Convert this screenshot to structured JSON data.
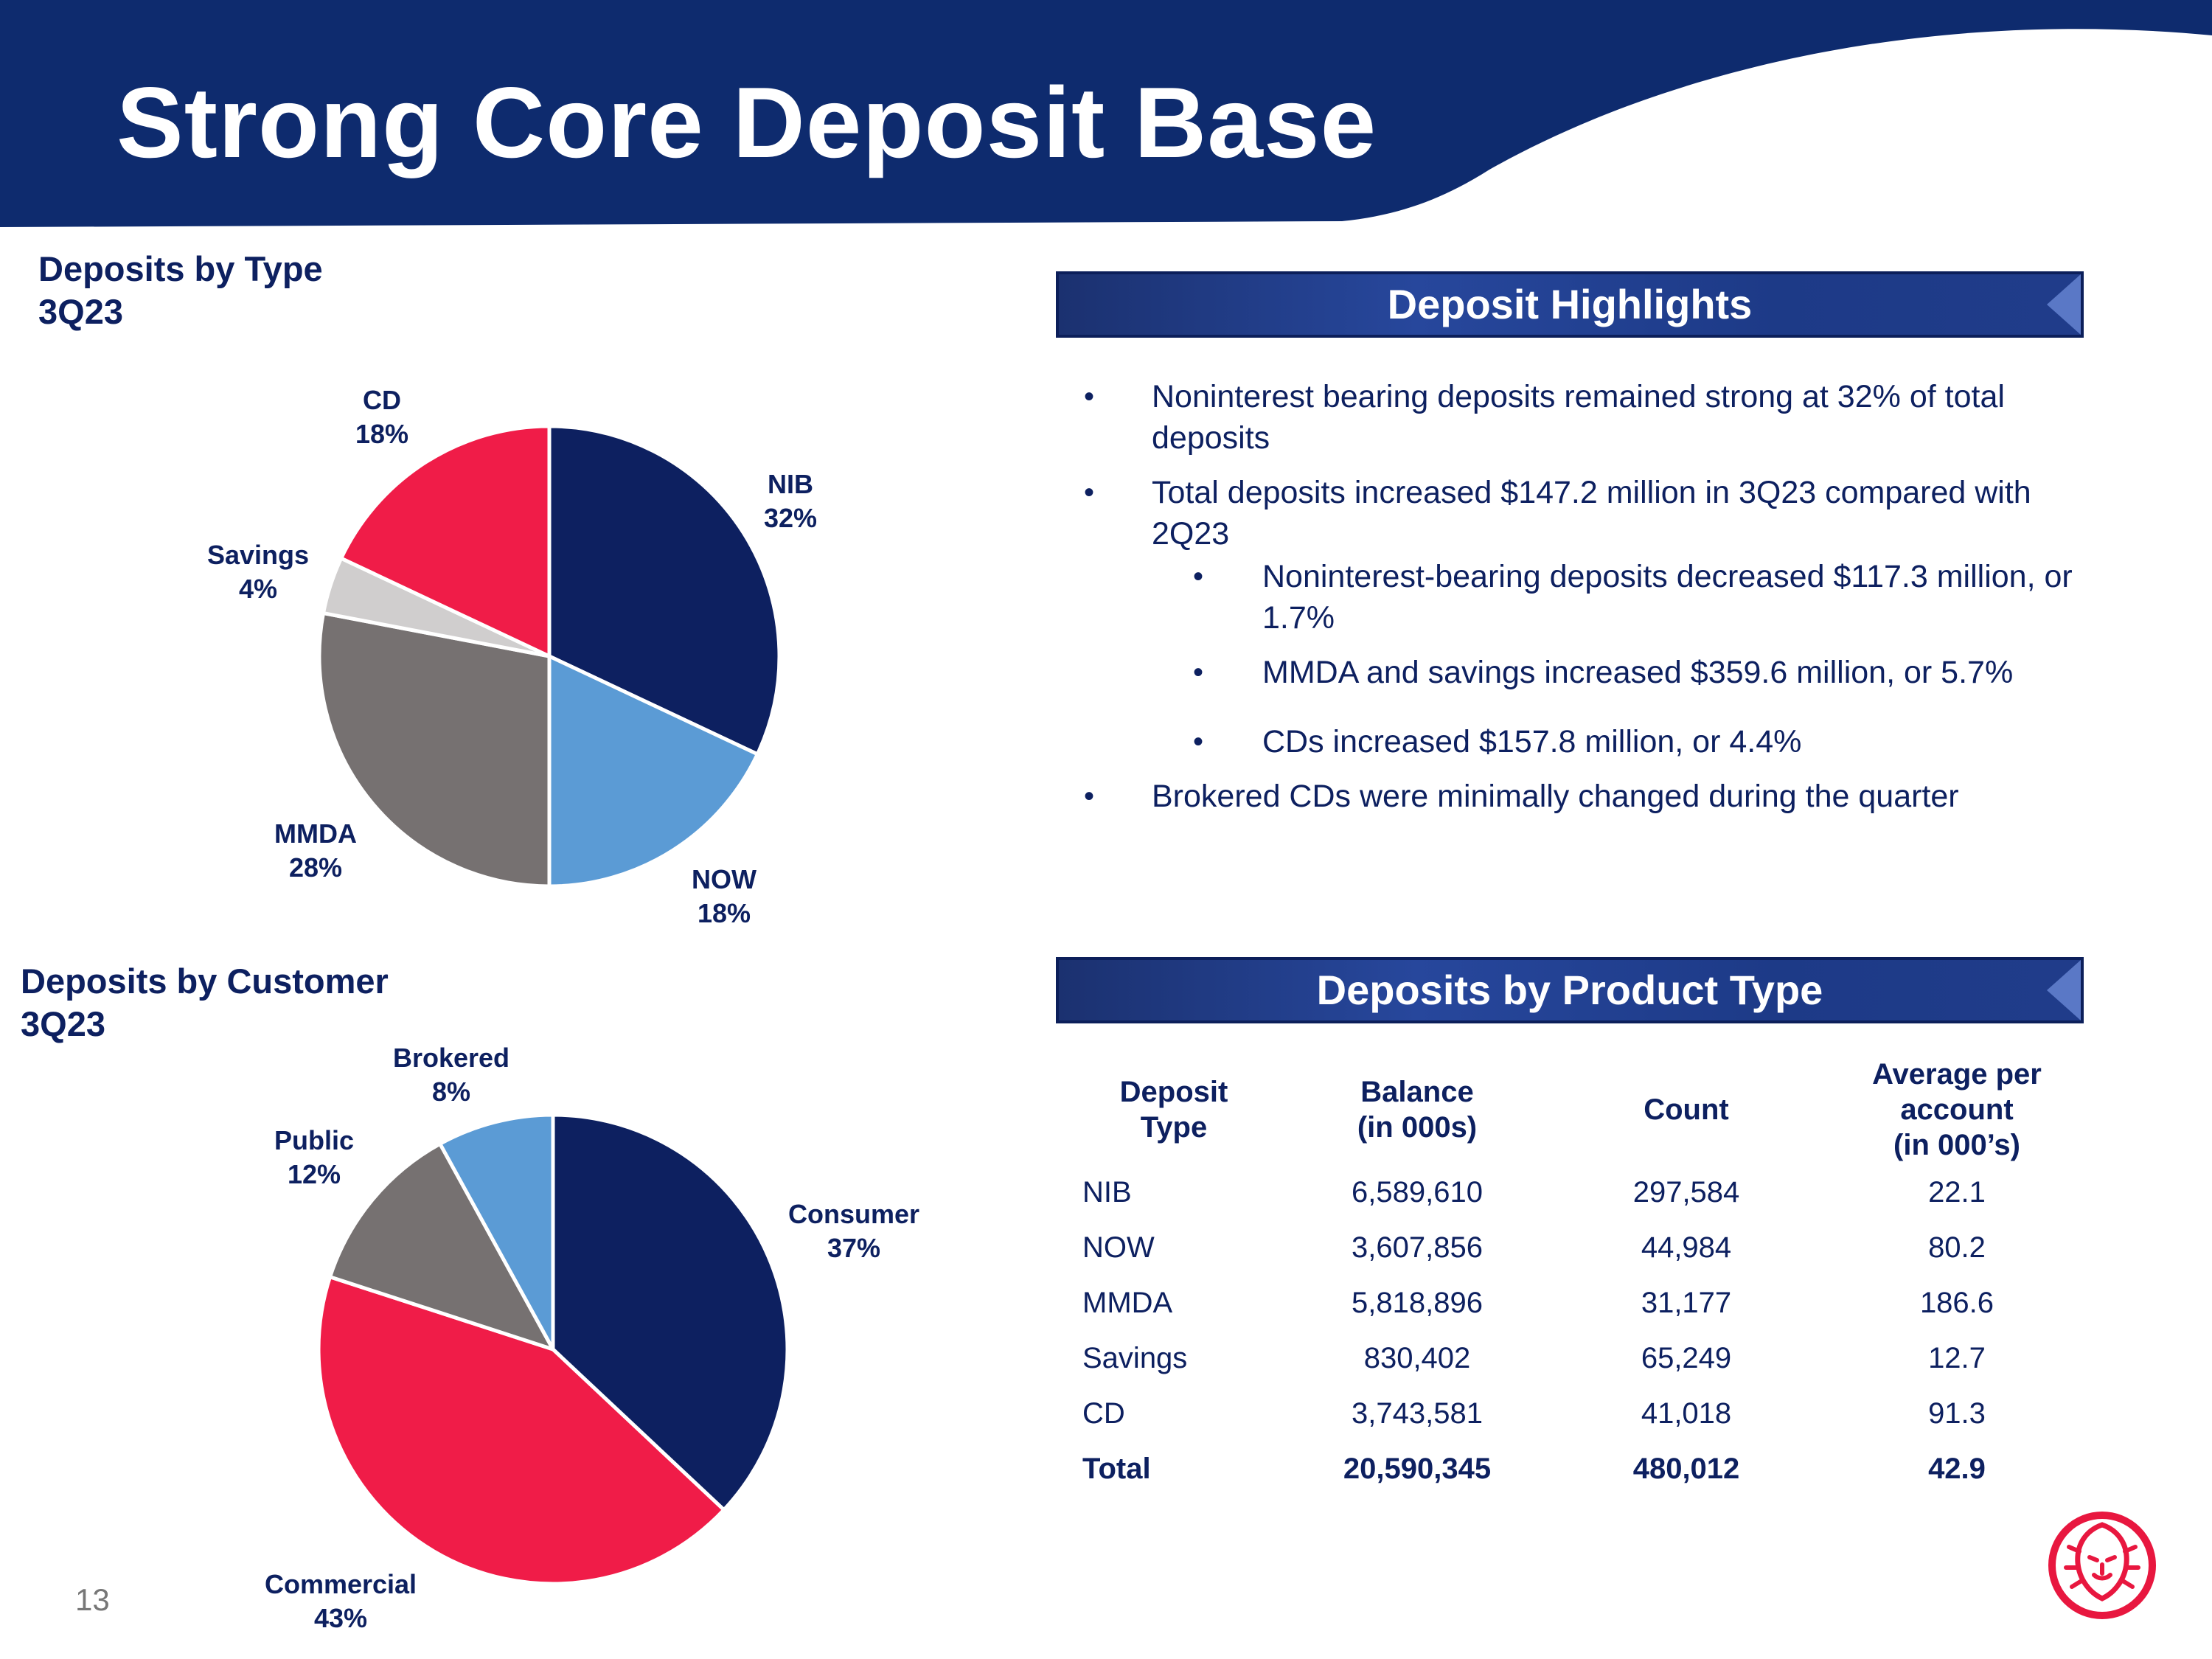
{
  "page": {
    "title": "Strong Core Deposit Base",
    "page_number": "13"
  },
  "colors": {
    "navy": "#0d2060",
    "header": "#0e2b6e",
    "red": "#f01c48",
    "light_blue": "#5b9bd5",
    "gray": "#767171",
    "light_gray": "#d0cece"
  },
  "chart_data": [
    {
      "type": "pie",
      "title": "Deposits by Type",
      "subtitle": "3Q23",
      "slices": [
        {
          "label": "NIB",
          "percent_label": "32%",
          "value": 32,
          "color": "#0d2060"
        },
        {
          "label": "NOW",
          "percent_label": "18%",
          "value": 18,
          "color": "#5b9bd5"
        },
        {
          "label": "MMDA",
          "percent_label": "28%",
          "value": 28,
          "color": "#767171"
        },
        {
          "label": "Savings",
          "percent_label": "4%",
          "value": 4,
          "color": "#d0cece"
        },
        {
          "label": "CD",
          "percent_label": "18%",
          "value": 18,
          "color": "#f01c48"
        }
      ]
    },
    {
      "type": "pie",
      "title": "Deposits by Customer",
      "subtitle": "3Q23",
      "slices": [
        {
          "label": "Consumer",
          "percent_label": "37%",
          "value": 37,
          "color": "#0d2060"
        },
        {
          "label": "Commercial",
          "percent_label": "43%",
          "value": 43,
          "color": "#f01c48"
        },
        {
          "label": "Public",
          "percent_label": "12%",
          "value": 12,
          "color": "#767171"
        },
        {
          "label": "Brokered",
          "percent_label": "8%",
          "value": 8,
          "color": "#5b9bd5"
        }
      ]
    }
  ],
  "highlights": {
    "heading": "Deposit Highlights",
    "bullets": [
      "Noninterest bearing deposits remained strong at 32% of total deposits",
      "Total deposits increased $147.2 million in 3Q23 compared with 2Q23",
      "Noninterest-bearing deposits decreased $117.3 million, or 1.7%",
      "MMDA and savings increased $359.6 million, or 5.7%",
      "CDs increased $157.8 million, or 4.4%",
      "Brokered CDs were minimally changed during the quarter"
    ]
  },
  "product_table": {
    "heading": "Deposits by Product Type",
    "columns": [
      {
        "line1": "Deposit",
        "line2": "Type",
        "line3": ""
      },
      {
        "line1": "Balance",
        "line2": "(in 000s)",
        "line3": ""
      },
      {
        "line1": "Count",
        "line2": "",
        "line3": ""
      },
      {
        "line1": "Average per",
        "line2": "account",
        "line3": "(in 000’s)"
      }
    ],
    "rows": [
      [
        "NIB",
        "6,589,610",
        "297,584",
        "22.1"
      ],
      [
        "NOW",
        "3,607,856",
        "44,984",
        "80.2"
      ],
      [
        "MMDA",
        "5,818,896",
        "31,177",
        "186.6"
      ],
      [
        "Savings",
        "830,402",
        "65,249",
        "12.7"
      ],
      [
        "CD",
        "3,743,581",
        "41,018",
        "91.3"
      ]
    ],
    "total": [
      "Total",
      "20,590,345",
      "480,012",
      "42.9"
    ]
  }
}
